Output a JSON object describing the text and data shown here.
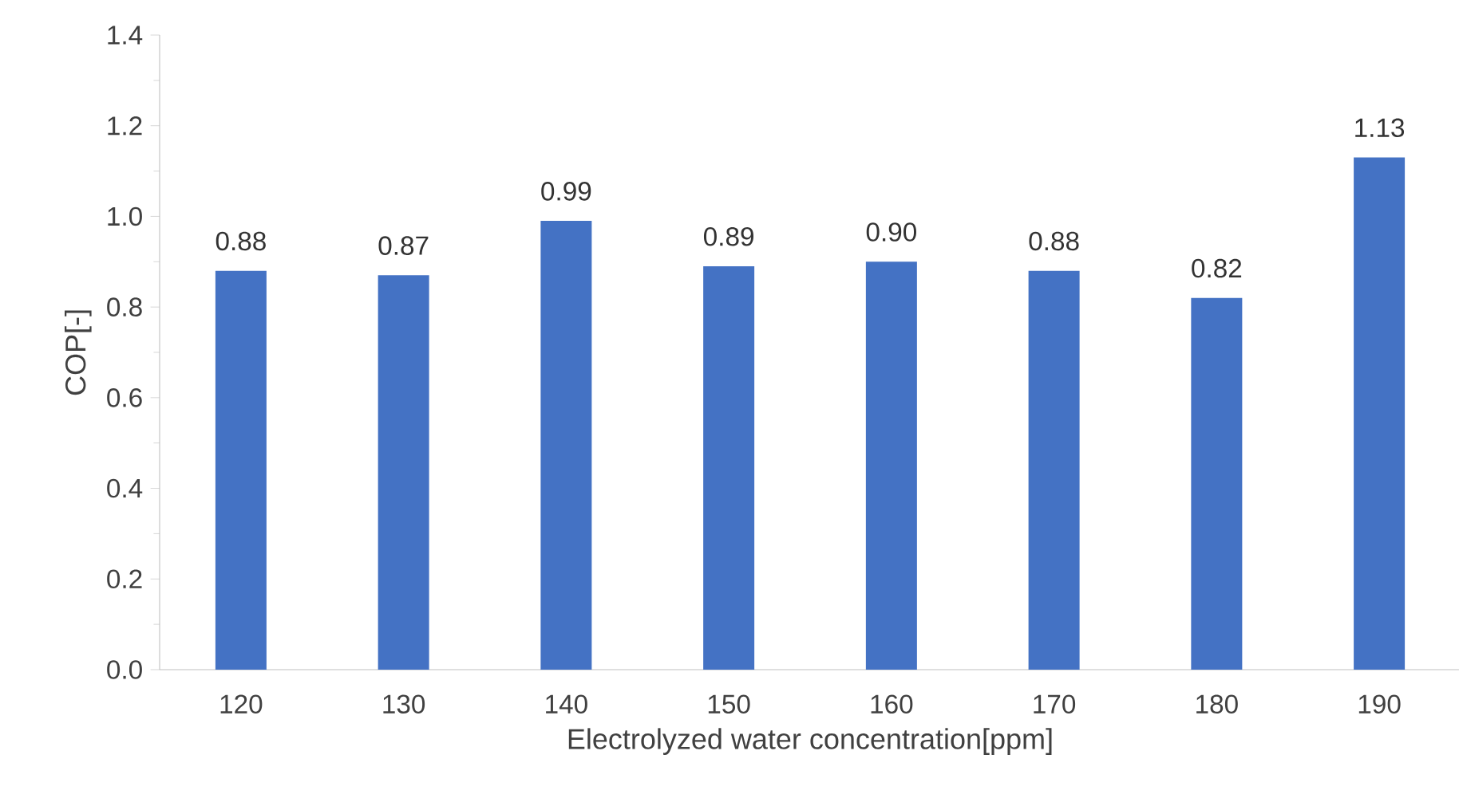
{
  "chart_data": {
    "type": "bar",
    "xlabel": "Electrolyzed water concentration[ppm]",
    "ylabel": "COP[-]",
    "categories": [
      "120",
      "130",
      "140",
      "150",
      "160",
      "170",
      "180",
      "190"
    ],
    "values": [
      0.88,
      0.87,
      0.99,
      0.89,
      0.9,
      0.88,
      0.82,
      1.13
    ],
    "value_labels": [
      "0.88",
      "0.87",
      "0.99",
      "0.89",
      "0.90",
      "0.88",
      "0.82",
      "1.13"
    ],
    "color": "#4472c4",
    "ylim": [
      0,
      1.4
    ],
    "yticks": [
      {
        "value": 0,
        "label": "0.0"
      },
      {
        "value": 0.2,
        "label": "0.2"
      },
      {
        "value": 0.4,
        "label": "0.4"
      },
      {
        "value": 0.6,
        "label": "0.6"
      },
      {
        "value": 0.8,
        "label": "0.8"
      },
      {
        "value": 1.0,
        "label": "1.0"
      },
      {
        "value": 1.2,
        "label": "1.2"
      },
      {
        "value": 1.4,
        "label": "1.4"
      }
    ]
  }
}
